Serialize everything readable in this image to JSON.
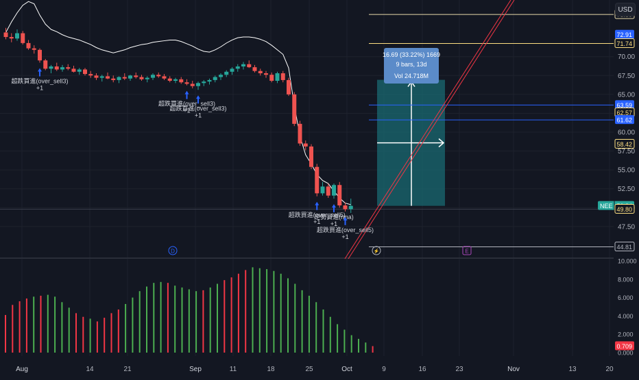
{
  "toolbar": {
    "currency_button": "USD"
  },
  "colors": {
    "background": "#131722",
    "grid": "#1e222d",
    "axis_text": "#b2b5be",
    "up": "#26a69a",
    "down": "#ef5350",
    "osc_up": "#4caf50",
    "osc_down": "#f23645",
    "band_line": "#ffffff",
    "trend_line": "#f23645",
    "marker": "#2962ff",
    "measure_fill": "#1a6a72",
    "measure_label_bg": "#5b8bc9"
  },
  "chart_data": [
    {
      "type": "candlestick",
      "symbol": "NEE",
      "x_tick_labels": [
        "Aug",
        "14",
        "21",
        "Sep",
        "11",
        "18",
        "25",
        "Oct",
        "9",
        "16",
        "23",
        "Nov",
        "13",
        "20"
      ],
      "y_ticks": [
        47.5,
        50.0,
        52.5,
        55.0,
        57.5,
        60.0,
        62.5,
        65.0,
        67.5,
        70.0
      ],
      "y_range": [
        43.5,
        77.5
      ],
      "price_labels": [
        {
          "value": "75.59",
          "kind": "line",
          "color": "#e8d9a8"
        },
        {
          "value": "72.91",
          "kind": "box",
          "color": "#2962ff"
        },
        {
          "value": "71.74",
          "kind": "line",
          "color": "#ffe082"
        },
        {
          "value": "63.59",
          "kind": "box",
          "color": "#2962ff"
        },
        {
          "value": "62.57",
          "kind": "line",
          "color": "#ffe082"
        },
        {
          "value": "61.62",
          "kind": "box",
          "color": "#2962ff"
        },
        {
          "value": "58.42",
          "kind": "line",
          "color": "#ffe082"
        },
        {
          "value": "50.24",
          "kind": "box",
          "color": "#26a69a",
          "prefix": "NEE"
        },
        {
          "value": "49.80",
          "kind": "line",
          "color": "#ffe082"
        },
        {
          "value": "44.81",
          "kind": "line",
          "color": "#b2b5be"
        }
      ],
      "candles": [
        [
          73.2,
          73.8,
          72.3,
          72.6
        ],
        [
          72.6,
          73.1,
          71.9,
          72.4
        ],
        [
          72.4,
          73.6,
          72.1,
          73.1
        ],
        [
          73.1,
          73.4,
          71.6,
          71.8
        ],
        [
          71.8,
          72.2,
          70.9,
          71.1
        ],
        [
          71.1,
          71.5,
          70.4,
          70.9
        ],
        [
          70.9,
          71.1,
          69.2,
          69.5
        ],
        [
          69.5,
          69.7,
          68.2,
          68.4
        ],
        [
          68.4,
          68.9,
          67.8,
          68.7
        ],
        [
          68.7,
          69.2,
          68.1,
          68.3
        ],
        [
          68.3,
          68.9,
          68.0,
          68.6
        ],
        [
          68.6,
          69.0,
          68.2,
          68.4
        ],
        [
          68.4,
          68.8,
          67.9,
          68.0
        ],
        [
          68.0,
          68.5,
          67.6,
          68.3
        ],
        [
          68.3,
          68.5,
          67.5,
          67.7
        ],
        [
          67.7,
          68.1,
          67.2,
          67.5
        ],
        [
          67.5,
          67.8,
          66.9,
          67.2
        ],
        [
          67.2,
          67.6,
          66.7,
          67.4
        ],
        [
          67.4,
          67.9,
          67.0,
          67.1
        ],
        [
          67.1,
          67.5,
          66.6,
          66.9
        ],
        [
          66.9,
          67.4,
          66.5,
          67.3
        ],
        [
          67.3,
          67.8,
          66.9,
          67.1
        ],
        [
          67.1,
          67.6,
          66.8,
          67.5
        ],
        [
          67.5,
          67.9,
          67.1,
          67.3
        ],
        [
          67.3,
          67.6,
          66.8,
          67.0
        ],
        [
          67.0,
          67.4,
          66.6,
          67.2
        ],
        [
          67.2,
          67.8,
          66.9,
          67.6
        ],
        [
          67.6,
          67.9,
          67.2,
          67.4
        ],
        [
          67.4,
          67.7,
          66.9,
          67.1
        ],
        [
          67.1,
          67.4,
          66.6,
          66.8
        ],
        [
          66.8,
          67.2,
          66.5,
          67.0
        ],
        [
          67.0,
          67.3,
          66.4,
          66.6
        ],
        [
          66.6,
          67.0,
          66.2,
          66.4
        ],
        [
          66.4,
          66.8,
          65.8,
          66.1
        ],
        [
          66.1,
          66.7,
          65.6,
          66.5
        ],
        [
          66.5,
          66.9,
          66.1,
          66.7
        ],
        [
          66.7,
          67.1,
          66.3,
          66.9
        ],
        [
          66.9,
          67.5,
          66.6,
          67.3
        ],
        [
          67.3,
          67.8,
          66.9,
          67.6
        ],
        [
          67.6,
          68.2,
          67.3,
          68.0
        ],
        [
          68.0,
          68.6,
          67.6,
          68.4
        ],
        [
          68.4,
          69.0,
          68.0,
          68.7
        ],
        [
          68.7,
          69.3,
          68.3,
          69.0
        ],
        [
          69.0,
          69.5,
          68.5,
          68.6
        ],
        [
          68.6,
          68.9,
          67.9,
          68.1
        ],
        [
          68.1,
          68.4,
          67.5,
          67.8
        ],
        [
          67.8,
          68.1,
          67.2,
          67.6
        ],
        [
          67.6,
          67.9,
          66.6,
          66.8
        ],
        [
          66.8,
          68.0,
          66.5,
          67.8
        ],
        [
          67.8,
          68.1,
          66.6,
          66.9
        ],
        [
          66.9,
          67.2,
          64.8,
          65.0
        ],
        [
          65.0,
          65.3,
          60.8,
          61.1
        ],
        [
          61.1,
          61.5,
          58.2,
          58.5
        ],
        [
          58.5,
          58.9,
          57.6,
          58.1
        ],
        [
          58.1,
          58.4,
          55.1,
          55.4
        ],
        [
          55.4,
          55.8,
          51.5,
          51.9
        ],
        [
          51.9,
          53.4,
          51.6,
          52.8
        ],
        [
          52.8,
          53.2,
          51.3,
          51.6
        ],
        [
          51.6,
          53.2,
          51.2,
          53.0
        ],
        [
          53.0,
          53.4,
          50.0,
          50.3
        ],
        [
          50.3,
          50.7,
          49.5,
          49.8
        ],
        [
          49.8,
          51.2,
          49.3,
          50.24
        ]
      ],
      "band_line": [
        73.2,
        74.6,
        75.8,
        76.8,
        77.3,
        77.0,
        75.5,
        74.3,
        73.6,
        73.3,
        72.9,
        72.6,
        72.4,
        72.2,
        71.9,
        71.6,
        71.2,
        70.9,
        70.7,
        70.5,
        70.7,
        70.9,
        71.2,
        71.4,
        71.6,
        71.7,
        71.9,
        72.0,
        72.1,
        72.2,
        72.2,
        72.0,
        71.7,
        71.4,
        71.0,
        70.7,
        70.6,
        70.9,
        71.3,
        71.8,
        72.2,
        72.5,
        72.6,
        72.6,
        72.5,
        72.3,
        72.0,
        71.5,
        70.9,
        70.3,
        68.5,
        63.5,
        59.5,
        57.0,
        55.8,
        54.4,
        53.6,
        53.2,
        52.2,
        51.3,
        50.6,
        50.4
      ],
      "measure": {
        "from_price": 50.24,
        "to_price": 66.93,
        "text_1": "16.69 (33.22%) 1669",
        "text_2": "9 bars, 13d",
        "text_3": "Vol 24.718M"
      },
      "annotations": [
        {
          "label": "超跌買進(over_sell3)",
          "sub": "+1",
          "bar": 6
        },
        {
          "label": "超跌買進(over_sell3)",
          "sub": "+1",
          "bar": 32
        },
        {
          "label": "超跌買進(over_sell3)",
          "sub": "+1",
          "bar": 34
        },
        {
          "label": "超跌買進(over_sell5)",
          "sub": "+1",
          "bar": 55
        },
        {
          "label": "逆勢買進(rma)",
          "sub": "+1",
          "bar": 58
        },
        {
          "label": "超跌買進(over_sell5)",
          "sub": "+1",
          "bar": 60
        }
      ],
      "event_markers": [
        {
          "label": "D"
        },
        {
          "label": "E"
        }
      ]
    },
    {
      "type": "bar",
      "y_ticks": [
        "10.000",
        "8.000",
        "6.000",
        "4.000",
        "2.000",
        "0.000"
      ],
      "y_range": [
        0,
        10
      ],
      "last_value_label": "0.709",
      "values": [
        4.1,
        5.2,
        5.6,
        5.9,
        6.1,
        6.2,
        6.3,
        6.1,
        5.5,
        4.9,
        4.3,
        3.9,
        3.7,
        3.4,
        3.8,
        4.3,
        4.7,
        5.3,
        6.0,
        6.7,
        7.2,
        7.6,
        7.7,
        7.6,
        7.3,
        7.1,
        6.9,
        6.7,
        6.8,
        7.1,
        7.5,
        7.9,
        8.2,
        8.6,
        9.0,
        9.3,
        9.2,
        9.1,
        8.9,
        8.6,
        8.1,
        7.5,
        6.8,
        6.2,
        5.5,
        4.7,
        3.9,
        3.1,
        2.5,
        1.9,
        1.5,
        1.1,
        0.709
      ],
      "colors": [
        "down",
        "down",
        "down",
        "down",
        "up",
        "down",
        "up",
        "up",
        "up",
        "up",
        "down",
        "down",
        "up",
        "down",
        "down",
        "down",
        "down",
        "up",
        "up",
        "up",
        "up",
        "up",
        "up",
        "down",
        "up",
        "up",
        "up",
        "up",
        "down",
        "up",
        "up",
        "down",
        "down",
        "down",
        "down",
        "up",
        "up",
        "up",
        "up",
        "up",
        "up",
        "up",
        "up",
        "up",
        "up",
        "up",
        "up",
        "up",
        "up",
        "up",
        "up",
        "up",
        "down"
      ]
    }
  ]
}
